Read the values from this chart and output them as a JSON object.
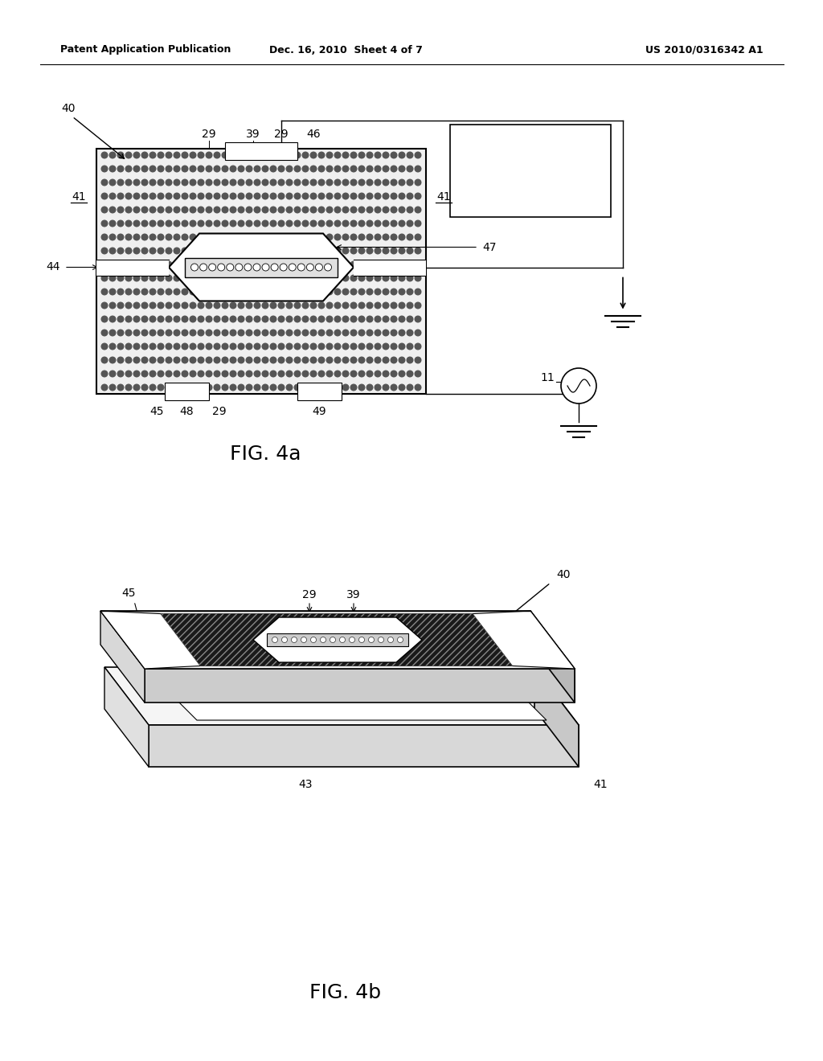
{
  "bg_color": "#ffffff",
  "line_color": "#000000",
  "header_left": "Patent Application Publication",
  "header_mid": "Dec. 16, 2010  Sheet 4 of 7",
  "header_right": "US 2010/0316342 A1",
  "fig4a_label": "FIG. 4a",
  "fig4b_label": "FIG. 4b"
}
